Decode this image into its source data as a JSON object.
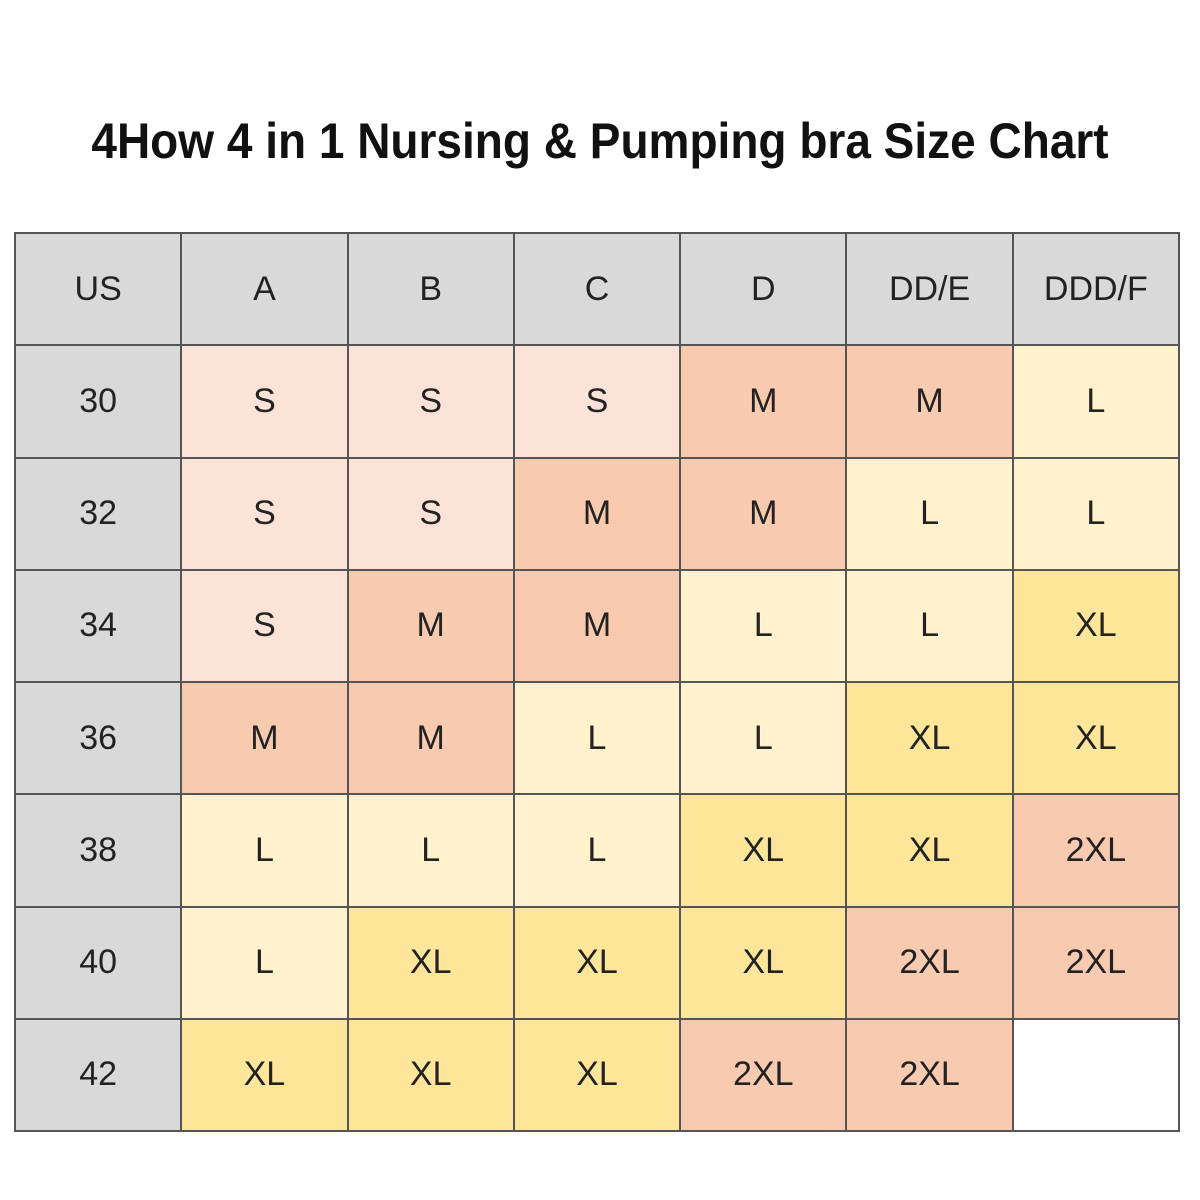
{
  "title": "4How 4 in 1 Nursing & Pumping bra Size Chart",
  "table": {
    "header": [
      "US",
      "A",
      "B",
      "C",
      "D",
      "DD/E",
      "DDD/F"
    ],
    "rows": [
      {
        "label": "30",
        "cells": [
          "S",
          "S",
          "S",
          "M",
          "M",
          "L"
        ]
      },
      {
        "label": "32",
        "cells": [
          "S",
          "S",
          "M",
          "M",
          "L",
          "L"
        ]
      },
      {
        "label": "34",
        "cells": [
          "S",
          "M",
          "M",
          "L",
          "L",
          "XL"
        ]
      },
      {
        "label": "36",
        "cells": [
          "M",
          "M",
          "L",
          "L",
          "XL",
          "XL"
        ]
      },
      {
        "label": "38",
        "cells": [
          "L",
          "L",
          "L",
          "XL",
          "XL",
          "2XL"
        ]
      },
      {
        "label": "40",
        "cells": [
          "L",
          "XL",
          "XL",
          "XL",
          "2XL",
          "2XL"
        ]
      },
      {
        "label": "42",
        "cells": [
          "XL",
          "XL",
          "XL",
          "2XL",
          "2XL"
        ]
      }
    ],
    "palette": {
      "S": "#fce3d8",
      "M": "#f8cbb0",
      "L": "#fff2cc",
      "XL": "#fde69a",
      "2XL": "#f8cbb0"
    },
    "header_color": "#d9d9d9"
  }
}
